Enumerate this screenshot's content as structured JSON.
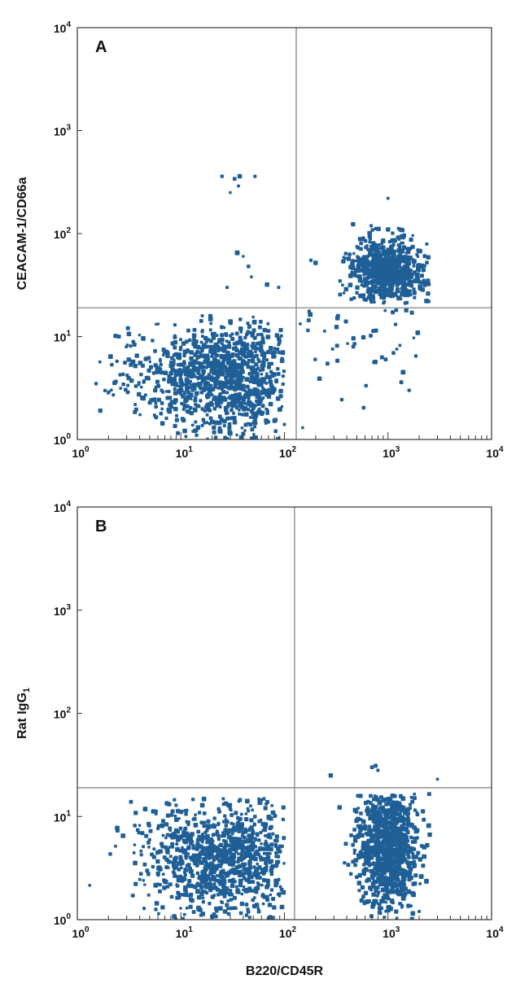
{
  "colors": {
    "dots": "#1f5f96",
    "frame": "#333333",
    "gate": "#9a9a9a"
  },
  "chart_data": [
    {
      "type": "scatter",
      "panel_label": "A",
      "xlabel": "",
      "ylabel": "CEACAM-1/CD66a",
      "xscale": "log",
      "yscale": "log",
      "xlim": [
        1,
        10000
      ],
      "ylim": [
        1,
        10000
      ],
      "gate": {
        "x": 130,
        "y": 19
      },
      "x_ticks": [
        {
          "base": "10",
          "exp": "0"
        },
        {
          "base": "10",
          "exp": "1"
        },
        {
          "base": "10",
          "exp": "2"
        },
        {
          "base": "10",
          "exp": "3"
        },
        {
          "base": "10",
          "exp": "4"
        }
      ],
      "y_ticks": [
        {
          "base": "10",
          "exp": "0"
        },
        {
          "base": "10",
          "exp": "1"
        },
        {
          "base": "10",
          "exp": "2"
        },
        {
          "base": "10",
          "exp": "3"
        },
        {
          "base": "10",
          "exp": "4"
        }
      ],
      "clusters": [
        {
          "n": 900,
          "cx": 30,
          "cy": 4,
          "sx": 0.32,
          "sy": 0.28,
          "xmin": 1,
          "xmax": 100,
          "ymin": 1,
          "ymax": 16
        },
        {
          "n": 160,
          "cx": 6,
          "cy": 4,
          "sx": 0.3,
          "sy": 0.25,
          "xmin": 1,
          "xmax": 20,
          "ymin": 1,
          "ymax": 12
        },
        {
          "n": 750,
          "cx": 1000,
          "cy": 45,
          "sx": 0.18,
          "sy": 0.16,
          "xmin": 300,
          "xmax": 2600,
          "ymin": 21,
          "ymax": 140
        },
        {
          "n": 40,
          "cx": 400,
          "cy": 10,
          "sx": 0.35,
          "sy": 0.25,
          "xmin": 140,
          "xmax": 2000,
          "ymin": 2,
          "ymax": 18
        }
      ],
      "points": [
        [
          25,
          360
        ],
        [
          33,
          340
        ],
        [
          37,
          360
        ],
        [
          52,
          360
        ],
        [
          30,
          250
        ],
        [
          36,
          290
        ],
        [
          35,
          65
        ],
        [
          45,
          48
        ],
        [
          40,
          60
        ],
        [
          48,
          38
        ],
        [
          28,
          30
        ],
        [
          68,
          32
        ],
        [
          88,
          30
        ],
        [
          180,
          55
        ],
        [
          200,
          52
        ],
        [
          1000,
          220
        ],
        [
          1600,
          3
        ],
        [
          1400,
          4.5
        ],
        [
          950,
          6
        ],
        [
          150,
          1.3
        ],
        [
          100,
          1.4
        ],
        [
          1200,
          18
        ],
        [
          1700,
          17
        ],
        [
          1500,
          18
        ]
      ]
    },
    {
      "type": "scatter",
      "panel_label": "B",
      "xlabel": "B220/CD45R",
      "ylabel": "Rat IgG1",
      "ylabel_main": "Rat IgG",
      "ylabel_sub": "1",
      "xscale": "log",
      "yscale": "log",
      "xlim": [
        1,
        10000
      ],
      "ylim": [
        1,
        10000
      ],
      "gate": {
        "x": 125,
        "y": 19
      },
      "x_ticks": [
        {
          "base": "10",
          "exp": "0"
        },
        {
          "base": "10",
          "exp": "1"
        },
        {
          "base": "10",
          "exp": "2"
        },
        {
          "base": "10",
          "exp": "3"
        },
        {
          "base": "10",
          "exp": "4"
        }
      ],
      "y_ticks": [
        {
          "base": "10",
          "exp": "0"
        },
        {
          "base": "10",
          "exp": "1"
        },
        {
          "base": "10",
          "exp": "2"
        },
        {
          "base": "10",
          "exp": "3"
        },
        {
          "base": "10",
          "exp": "4"
        }
      ],
      "clusters": [
        {
          "n": 950,
          "cx": 25,
          "cy": 4,
          "sx": 0.38,
          "sy": 0.28,
          "xmin": 1,
          "xmax": 100,
          "ymin": 1,
          "ymax": 15
        },
        {
          "n": 1000,
          "cx": 1000,
          "cy": 5,
          "sx": 0.15,
          "sy": 0.3,
          "xmin": 140,
          "xmax": 2600,
          "ymin": 1,
          "ymax": 16
        }
      ],
      "points": [
        [
          280,
          25
        ],
        [
          700,
          30
        ],
        [
          800,
          28
        ],
        [
          760,
          31
        ],
        [
          3000,
          23
        ],
        [
          1800,
          16.5
        ],
        [
          2500,
          16.5
        ]
      ]
    }
  ]
}
